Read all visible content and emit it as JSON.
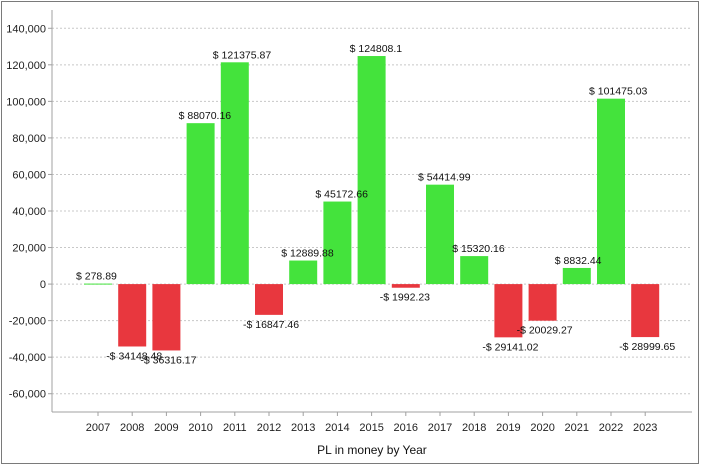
{
  "chart_data": {
    "type": "bar",
    "title": "",
    "xlabel": "PL in money by Year",
    "ylabel": "",
    "ylim": [
      -70000,
      150000
    ],
    "yticks": [
      140000,
      120000,
      100000,
      80000,
      60000,
      40000,
      20000,
      0,
      -20000,
      -40000,
      -60000
    ],
    "ytick_labels": [
      "140,000",
      "120,000",
      "100,000",
      "80,000",
      "60,000",
      "40,000",
      "20,000",
      "0",
      "-20,000",
      "-40,000",
      "-60,000"
    ],
    "grid": true,
    "categories": [
      "2007",
      "2008",
      "2009",
      "2010",
      "2011",
      "2012",
      "2013",
      "2014",
      "2015",
      "2016",
      "2017",
      "2018",
      "2019",
      "2020",
      "2021",
      "2022",
      "2023"
    ],
    "values": [
      278.89,
      -34148.48,
      -36316.17,
      88070.16,
      121375.87,
      -16847.46,
      12889.88,
      45172.66,
      124808.1,
      -1992.23,
      54414.99,
      15320.16,
      -29141.02,
      -20029.27,
      8832.44,
      101475.03,
      -28999.65
    ],
    "data_labels": [
      "$ 278.89",
      "-$ 34148.48",
      "-$ 36316.17",
      "$ 88070.16",
      "$ 121375.87",
      "-$ 16847.46",
      "$ 12889.88",
      "$ 45172.66",
      "$ 124808.1",
      "-$ 1992.23",
      "$ 54414.99",
      "$ 15320.16",
      "-$ 29141.02",
      "-$ 20029.27",
      "$ 8832.44",
      "$ 101475.03",
      "-$ 28999.65"
    ],
    "colors": {
      "positive": "#44e33c",
      "negative": "#e8373e",
      "grid": "#c8c8c8",
      "axis": "#a0a0a0"
    }
  }
}
